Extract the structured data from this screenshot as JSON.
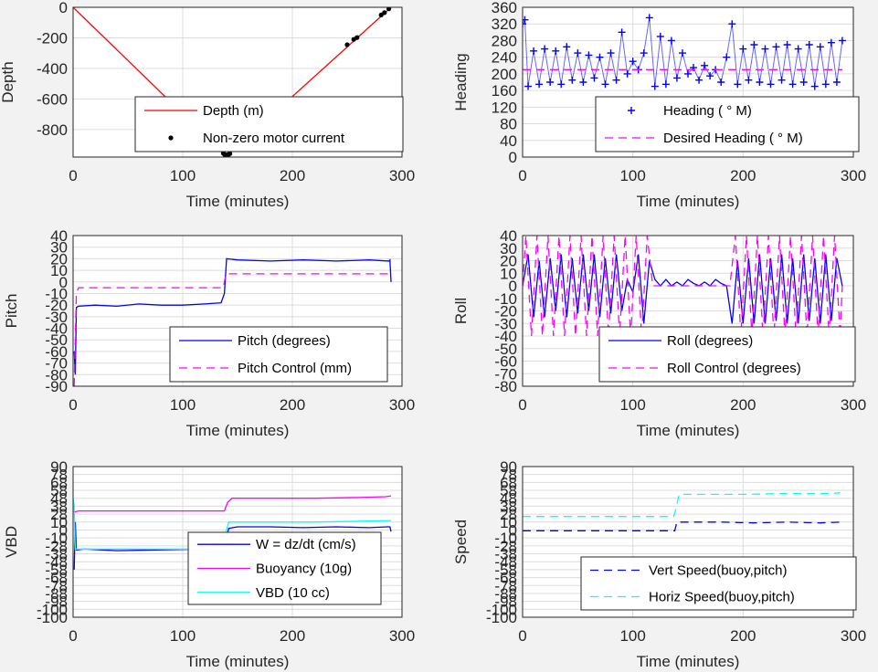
{
  "chart_data": [
    {
      "id": "depth",
      "type": "line",
      "xlabel": "Time (minutes)",
      "ylabel": "Depth",
      "xlim": [
        0,
        300
      ],
      "ylim": [
        -980,
        0
      ],
      "xticks": [
        "0",
        "100",
        "200",
        "300"
      ],
      "yticks": [
        "0",
        "-200",
        "-400",
        "-600",
        "-800"
      ],
      "grid": true,
      "legend_position": "lower-right",
      "series": [
        {
          "name": "Depth (m)",
          "style": "line",
          "color": "#ff0000",
          "x": [
            0,
            138,
            140,
            142,
            290
          ],
          "y": [
            0,
            -960,
            -970,
            -960,
            0
          ]
        },
        {
          "name": "Non-zero motor current",
          "style": "dots",
          "color": "#000000",
          "x": [
            137,
            138,
            139,
            140,
            141,
            142,
            143,
            250,
            256,
            259,
            281,
            284,
            288
          ],
          "y": [
            -955,
            -962,
            -966,
            -968,
            -966,
            -962,
            -958,
            -245,
            -210,
            -198,
            -50,
            -35,
            -10
          ]
        }
      ]
    },
    {
      "id": "heading",
      "type": "scatter",
      "xlabel": "Time (minutes)",
      "ylabel": "Heading",
      "xlim": [
        0,
        300
      ],
      "ylim": [
        0,
        360
      ],
      "xticks": [
        "0",
        "100",
        "200",
        "300"
      ],
      "yticks": [
        "0",
        "40",
        "80",
        "120",
        "160",
        "200",
        "240",
        "280",
        "320",
        "360"
      ],
      "grid": true,
      "legend_position": "lower-right",
      "series": [
        {
          "name": "Heading (   ° M)",
          "style": "plus",
          "color": "#0000ff",
          "x": [
            0,
            2,
            5,
            10,
            15,
            20,
            25,
            30,
            35,
            40,
            45,
            50,
            55,
            60,
            65,
            70,
            75,
            80,
            85,
            90,
            95,
            100,
            105,
            110,
            115,
            120,
            125,
            130,
            135,
            140,
            145,
            150,
            155,
            160,
            165,
            170,
            175,
            180,
            185,
            190,
            195,
            200,
            205,
            210,
            215,
            220,
            225,
            230,
            235,
            240,
            245,
            250,
            255,
            260,
            265,
            270,
            275,
            280,
            285,
            290
          ],
          "y": [
            320,
            330,
            170,
            255,
            175,
            260,
            180,
            255,
            175,
            265,
            185,
            250,
            180,
            245,
            190,
            240,
            175,
            250,
            185,
            300,
            200,
            230,
            210,
            250,
            335,
            170,
            290,
            175,
            280,
            190,
            250,
            200,
            215,
            185,
            220,
            195,
            210,
            180,
            240,
            320,
            175,
            260,
            185,
            270,
            180,
            260,
            175,
            265,
            185,
            270,
            175,
            260,
            180,
            270,
            170,
            265,
            175,
            275,
            180,
            280
          ]
        },
        {
          "name": "Desired Heading (     ° M)",
          "style": "dashed",
          "color": "#ff00ff",
          "x": [
            0,
            290
          ],
          "y": [
            210,
            210
          ]
        }
      ]
    },
    {
      "id": "pitch",
      "type": "line",
      "xlabel": "Time (minutes)",
      "ylabel": "Pitch",
      "xlim": [
        0,
        300
      ],
      "ylim": [
        -90,
        40
      ],
      "xticks": [
        "0",
        "100",
        "200",
        "300"
      ],
      "yticks": [
        "40",
        "30",
        "20",
        "10",
        "0",
        "-10",
        "-20",
        "-30",
        "-40",
        "-50",
        "-60",
        "-70",
        "-80",
        "-90"
      ],
      "grid": true,
      "legend_position": "lower-right",
      "series": [
        {
          "name": "Pitch (degrees)",
          "style": "line",
          "color": "#0000ff",
          "x": [
            1,
            2,
            3,
            5,
            20,
            40,
            60,
            80,
            100,
            120,
            135,
            138,
            140,
            150,
            180,
            210,
            240,
            270,
            288,
            289,
            290
          ],
          "y": [
            -60,
            -80,
            -22,
            -21,
            -20,
            -21,
            -19,
            -20,
            -20,
            -19,
            -18,
            -10,
            20,
            19,
            18,
            19,
            18,
            19,
            18,
            19,
            0
          ]
        },
        {
          "name": "Pitch Control (mm)",
          "style": "dashed",
          "color": "#ff00ff",
          "x": [
            1,
            3,
            5,
            137,
            139,
            140,
            290
          ],
          "y": [
            -90,
            -10,
            -5,
            -5,
            5,
            7,
            7
          ]
        }
      ]
    },
    {
      "id": "roll",
      "type": "line",
      "xlabel": "Time (minutes)",
      "ylabel": "Roll",
      "xlim": [
        0,
        300
      ],
      "ylim": [
        -80,
        40
      ],
      "xticks": [
        "0",
        "100",
        "200",
        "300"
      ],
      "yticks": [
        "40",
        "30",
        "20",
        "10",
        "0",
        "-10",
        "-20",
        "-30",
        "-40",
        "-50",
        "-60",
        "-70",
        "-80"
      ],
      "grid": true,
      "legend_position": "lower-right",
      "series": [
        {
          "name": "Roll (degrees)",
          "style": "line",
          "color": "#0000ff",
          "x": [
            0,
            5,
            10,
            15,
            20,
            25,
            30,
            35,
            40,
            45,
            50,
            55,
            60,
            65,
            70,
            75,
            80,
            85,
            90,
            95,
            100,
            105,
            110,
            115,
            120,
            125,
            130,
            135,
            140,
            145,
            150,
            155,
            160,
            165,
            170,
            175,
            180,
            185,
            190,
            195,
            200,
            205,
            210,
            215,
            220,
            225,
            230,
            235,
            240,
            245,
            250,
            255,
            260,
            265,
            270,
            275,
            280,
            285,
            290
          ],
          "y": [
            0,
            25,
            -25,
            20,
            -25,
            22,
            -20,
            25,
            -25,
            22,
            -22,
            25,
            -20,
            25,
            -25,
            22,
            -22,
            25,
            -20,
            5,
            -5,
            25,
            -30,
            20,
            5,
            0,
            5,
            0,
            3,
            0,
            5,
            2,
            0,
            3,
            0,
            5,
            2,
            0,
            -30,
            20,
            -30,
            22,
            -30,
            25,
            -30,
            22,
            -28,
            25,
            -30,
            22,
            -30,
            25,
            -28,
            22,
            -30,
            25,
            -28,
            22,
            0
          ]
        },
        {
          "name": "Roll Control (degrees)",
          "style": "dashed",
          "color": "#ff00ff",
          "x": [
            0,
            3,
            8,
            13,
            18,
            23,
            28,
            33,
            38,
            43,
            48,
            53,
            58,
            63,
            68,
            73,
            78,
            83,
            88,
            93,
            98,
            103,
            108,
            113,
            118,
            122,
            130,
            140,
            150,
            160,
            170,
            180,
            188,
            193,
            198,
            203,
            208,
            213,
            218,
            223,
            228,
            233,
            238,
            243,
            248,
            253,
            258,
            263,
            268,
            273,
            278,
            283,
            288,
            290
          ],
          "y": [
            0,
            40,
            -40,
            40,
            -40,
            40,
            -40,
            40,
            -40,
            40,
            -40,
            40,
            -40,
            40,
            -40,
            40,
            -40,
            40,
            -40,
            40,
            -40,
            40,
            -40,
            40,
            0,
            0,
            0,
            0,
            0,
            0,
            0,
            0,
            0,
            40,
            -40,
            40,
            -40,
            40,
            -40,
            40,
            -40,
            40,
            -40,
            40,
            -40,
            40,
            -40,
            40,
            -40,
            40,
            -40,
            40,
            -40,
            0
          ]
        }
      ]
    },
    {
      "id": "vbd",
      "type": "line",
      "xlabel": "Time (minutes)",
      "ylabel": "VBD",
      "xlim": [
        0,
        300
      ],
      "ylim": [
        -100,
        90
      ],
      "xticks": [
        "0",
        "100",
        "200",
        "300"
      ],
      "yticks": [
        "90",
        "80",
        "70",
        "60",
        "50",
        "40",
        "30",
        "20",
        "10",
        "0",
        "-10",
        "-20",
        "-30",
        "-40",
        "-50",
        "-60",
        "-70",
        "-80",
        "-90",
        "-100"
      ],
      "ytick_labels_shown": [
        "90",
        "78",
        "68",
        "58",
        "48",
        "38",
        "28",
        "10",
        "0",
        "-10",
        "-28",
        "-38",
        "-48",
        "-58",
        "-68",
        "-78",
        "-88",
        "-98",
        "-100"
      ],
      "grid": true,
      "legend_position": "lower-right",
      "series": [
        {
          "name": "W = dz/dt (cm/s)",
          "style": "line",
          "color": "#0000ff",
          "x": [
            1,
            2,
            3,
            4,
            10,
            40,
            80,
            120,
            135,
            138,
            142,
            150,
            180,
            210,
            240,
            270,
            287,
            289,
            290
          ],
          "y": [
            -40,
            20,
            -15,
            -15,
            -14,
            -16,
            -15,
            -14,
            -15,
            -10,
            12,
            14,
            14,
            13,
            14,
            13,
            14,
            14,
            8
          ]
        },
        {
          "name": "Buoyancy (10g)",
          "style": "line",
          "color": "#ff00ff",
          "x": [
            0,
            2,
            5,
            138,
            141,
            145,
            180,
            220,
            260,
            285,
            290
          ],
          "y": [
            33,
            33,
            34,
            34,
            45,
            50,
            50,
            50,
            51,
            52,
            53
          ]
        },
        {
          "name": "VBD (10 cc)",
          "style": "line",
          "color": "#00ffff",
          "x": [
            0,
            1,
            2,
            3,
            138,
            140,
            142,
            180,
            220,
            260,
            290
          ],
          "y": [
            50,
            40,
            -14,
            -14,
            -14,
            10,
            20,
            20,
            20,
            21,
            22
          ]
        }
      ]
    },
    {
      "id": "speed",
      "type": "line",
      "xlabel": "Time (minutes)",
      "ylabel": "Speed",
      "xlim": [
        0,
        300
      ],
      "ylim": [
        -100,
        90
      ],
      "xticks": [
        "0",
        "100",
        "200",
        "300"
      ],
      "yticks": [
        "90",
        "80",
        "70",
        "60",
        "50",
        "40",
        "30",
        "20",
        "10",
        "0",
        "-10",
        "-20",
        "-30",
        "-40",
        "-50",
        "-60",
        "-70",
        "-80",
        "-90",
        "-100"
      ],
      "ytick_labels_shown": [
        "90",
        "78",
        "68",
        "58",
        "48",
        "38",
        "28",
        "10",
        "0",
        "-10",
        "-28",
        "-38",
        "-48",
        "-58",
        "-68",
        "-78",
        "-88",
        "-98",
        "-100"
      ],
      "grid": true,
      "legend_position": "lower-right",
      "series": [
        {
          "name": "Vert Speed(buoy,pitch)",
          "style": "dashed",
          "color": "#0000ff",
          "x": [
            0,
            138,
            140,
            150,
            180,
            210,
            240,
            270,
            288
          ],
          "y": [
            9,
            9,
            20,
            20,
            20,
            19,
            20,
            19,
            20
          ]
        },
        {
          "name": "Horiz Speed(buoy,pitch)",
          "style": "dashed",
          "color": "#00ffff",
          "x": [
            0,
            137,
            139,
            142,
            160,
            200,
            240,
            280,
            288
          ],
          "y": [
            27,
            27,
            36,
            55,
            55,
            55,
            56,
            56,
            57
          ]
        }
      ]
    }
  ]
}
